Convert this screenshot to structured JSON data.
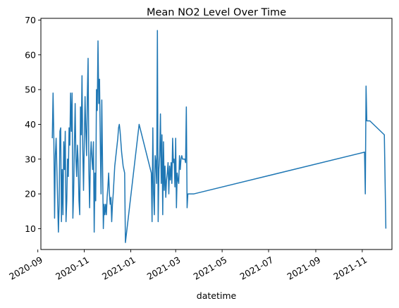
{
  "chart_data": {
    "type": "line",
    "title": "Mean NO2 Level Over Time",
    "xlabel": "datetime",
    "ylabel": "",
    "grid": false,
    "line_color": "#1f77b4",
    "xlim": [
      "2020-09-05",
      "2021-12-10"
    ],
    "ylim": [
      4,
      70.5
    ],
    "x_ticks": [
      "2020-09-01",
      "2020-11-01",
      "2021-01-01",
      "2021-03-01",
      "2021-05-01",
      "2021-07-01",
      "2021-09-01",
      "2021-11-01"
    ],
    "x_tick_labels": [
      "2020-09",
      "2020-11",
      "2021-01",
      "2021-03",
      "2021-05",
      "2021-07",
      "2021-09",
      "2021-11"
    ],
    "y_ticks": [
      10,
      20,
      30,
      40,
      50,
      60,
      70
    ],
    "y_tick_labels": [
      "10",
      "20",
      "30",
      "40",
      "50",
      "60",
      "70"
    ],
    "series": [
      {
        "name": "",
        "x": [
          "2020-09-20",
          "2020-09-21",
          "2020-09-22",
          "2020-09-23",
          "2020-09-24",
          "2020-09-25",
          "2020-09-27",
          "2020-09-28",
          "2020-09-29",
          "2020-09-30",
          "2020-10-01",
          "2020-10-02",
          "2020-10-03",
          "2020-10-04",
          "2020-10-05",
          "2020-10-06",
          "2020-10-07",
          "2020-10-08",
          "2020-10-09",
          "2020-10-10",
          "2020-10-11",
          "2020-10-12",
          "2020-10-13",
          "2020-10-14",
          "2020-10-15",
          "2020-10-16",
          "2020-10-17",
          "2020-10-18",
          "2020-10-19",
          "2020-10-20",
          "2020-10-21",
          "2020-10-22",
          "2020-10-23",
          "2020-10-24",
          "2020-10-25",
          "2020-10-26",
          "2020-10-27",
          "2020-10-28",
          "2020-10-29",
          "2020-10-30",
          "2020-10-31",
          "2020-11-01",
          "2020-11-02",
          "2020-11-03",
          "2020-11-04",
          "2020-11-05",
          "2020-11-06",
          "2020-11-07",
          "2020-11-08",
          "2020-11-09",
          "2020-11-10",
          "2020-11-11",
          "2020-11-12",
          "2020-11-13",
          "2020-11-14",
          "2020-11-15",
          "2020-11-16",
          "2020-11-17",
          "2020-11-18",
          "2020-11-19",
          "2020-11-20",
          "2020-11-21",
          "2020-11-22",
          "2020-11-23",
          "2020-11-24",
          "2020-11-25",
          "2020-11-26",
          "2020-11-27",
          "2020-11-28",
          "2020-11-29",
          "2020-11-30",
          "2020-12-01",
          "2020-12-02",
          "2020-12-03",
          "2020-12-04",
          "2020-12-05",
          "2020-12-06",
          "2020-12-07",
          "2020-12-08",
          "2020-12-09",
          "2020-12-10",
          "2020-12-11",
          "2020-12-12",
          "2020-12-13",
          "2020-12-14",
          "2020-12-15",
          "2020-12-16",
          "2020-12-17",
          "2020-12-18",
          "2020-12-19",
          "2020-12-20",
          "2020-12-21",
          "2020-12-22",
          "2020-12-23",
          "2020-12-24",
          "2020-12-25",
          "2021-01-12",
          "2021-01-28",
          "2021-01-29",
          "2021-01-30",
          "2021-01-31",
          "2021-02-01",
          "2021-02-02",
          "2021-02-03",
          "2021-02-04",
          "2021-02-05",
          "2021-02-06",
          "2021-02-07",
          "2021-02-08",
          "2021-02-09",
          "2021-02-10",
          "2021-02-11",
          "2021-02-12",
          "2021-02-13",
          "2021-02-14",
          "2021-02-15",
          "2021-02-16",
          "2021-02-17",
          "2021-02-18",
          "2021-02-19",
          "2021-02-20",
          "2021-02-21",
          "2021-02-22",
          "2021-02-23",
          "2021-02-24",
          "2021-02-25",
          "2021-02-26",
          "2021-02-27",
          "2021-02-28",
          "2021-03-01",
          "2021-03-02",
          "2021-03-03",
          "2021-03-04",
          "2021-03-05",
          "2021-03-06",
          "2021-03-07",
          "2021-03-08",
          "2021-03-09",
          "2021-03-10",
          "2021-03-11",
          "2021-03-12",
          "2021-03-13",
          "2021-03-14",
          "2021-03-15",
          "2021-03-16",
          "2021-03-17",
          "2021-03-18",
          "2021-03-19",
          "2021-03-20",
          "2021-03-21",
          "2021-03-22",
          "2021-03-23",
          "2021-03-24",
          "2021-03-25",
          "2021-11-04",
          "2021-11-05",
          "2021-11-06",
          "2021-11-07",
          "2021-11-08",
          "2021-11-09",
          "2021-11-10",
          "2021-11-11",
          "2021-11-30",
          "2021-12-02"
        ],
        "y": [
          36,
          49,
          36,
          13,
          31,
          36,
          18,
          9,
          17,
          38,
          39,
          12,
          27,
          14,
          35,
          27,
          38,
          12,
          18,
          30,
          25,
          39,
          34,
          49,
          38,
          49,
          13,
          20,
          34,
          46,
          30,
          25,
          34,
          29,
          18,
          14,
          45,
          37,
          54,
          33,
          21,
          35,
          48,
          38,
          31,
          48,
          59,
          27,
          16,
          30,
          35,
          30,
          27,
          35,
          9,
          26,
          18,
          50,
          44,
          64,
          46,
          53,
          35,
          20,
          47,
          28,
          10,
          17,
          14,
          17,
          14,
          19,
          22,
          26,
          20,
          17,
          19,
          12,
          17,
          20,
          24,
          28,
          30,
          32,
          34,
          36,
          39,
          40,
          38,
          35,
          32,
          30,
          28,
          27,
          26,
          6,
          40,
          26,
          12,
          39,
          20,
          14,
          31,
          29,
          23,
          67,
          12,
          27,
          31,
          43,
          23,
          37,
          14,
          35,
          21,
          28,
          19,
          24,
          26,
          29,
          20,
          28,
          24,
          29,
          23,
          36,
          29,
          30,
          22,
          36,
          16,
          26,
          24,
          23,
          31,
          27,
          30,
          31,
          30,
          30,
          30,
          30,
          29,
          45,
          16,
          20,
          20,
          20,
          20,
          20,
          20,
          20,
          20,
          20,
          32,
          20,
          51,
          41,
          41,
          41,
          41,
          41,
          37,
          10
        ]
      }
    ]
  }
}
